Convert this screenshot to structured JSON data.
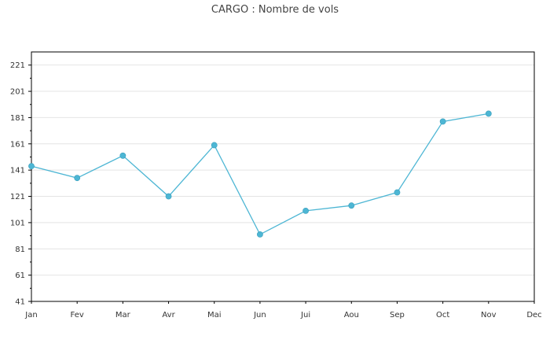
{
  "chart_data": {
    "type": "line",
    "title": "CARGO : Nombre de vols",
    "xlabel": "",
    "ylabel": "",
    "categories": [
      "Jan",
      "Fev",
      "Mar",
      "Avr",
      "Mai",
      "Jun",
      "Jui",
      "Aou",
      "Sep",
      "Oct",
      "Nov",
      "Dec"
    ],
    "series": [
      {
        "values": [
          144,
          135,
          152,
          121,
          160,
          92,
          110,
          114,
          124,
          178,
          184,
          null
        ]
      }
    ],
    "yticks": [
      41,
      61,
      81,
      101,
      121,
      141,
      161,
      181,
      201,
      221
    ],
    "ylim": [
      41,
      231
    ],
    "grid": true,
    "legend": "none",
    "colors": {
      "line": "#4db6d4",
      "marker": "#4db6d4",
      "grid": "#e4e4e4",
      "axis": "#000000"
    }
  }
}
